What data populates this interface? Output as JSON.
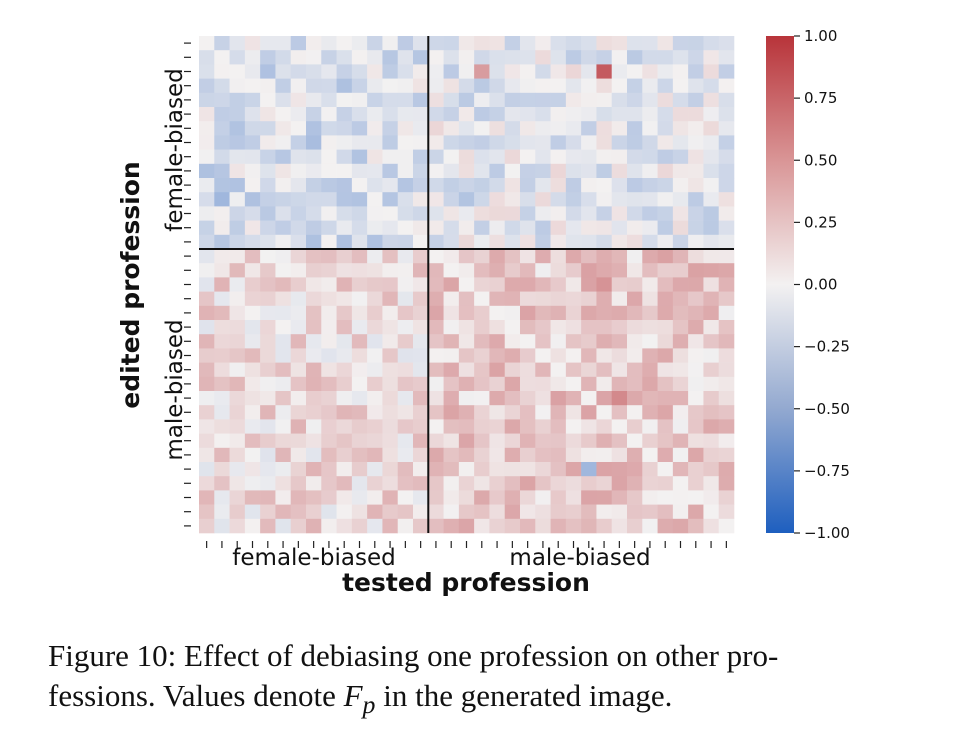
{
  "chart_data": {
    "type": "heatmap",
    "rows": 35,
    "cols": 35,
    "female_count": 15,
    "xlabel": "tested profession",
    "ylabel": "edited profession",
    "x_groups": [
      "female-biased",
      "male-biased"
    ],
    "y_groups": [
      "female-biased",
      "male-biased"
    ],
    "vmin": -1.0,
    "vmax": 1.0,
    "colormap": "vlag",
    "colorbar_ticks": [
      "1.00",
      "0.75",
      "0.50",
      "0.25",
      "0.00",
      "−0.25",
      "−0.50",
      "−0.75",
      "−1.00"
    ],
    "colorbar_values": [
      1.0,
      0.75,
      0.5,
      0.25,
      0.0,
      -0.25,
      -0.5,
      -0.75,
      -1.0
    ],
    "block_means": {
      "ff": -0.15,
      "fm": -0.08,
      "mf": 0.12,
      "mm": 0.2
    },
    "strong_cells": [
      [
        2,
        18,
        0.45
      ],
      [
        2,
        26,
        0.8
      ],
      [
        11,
        1,
        -0.45
      ],
      [
        7,
        7,
        -0.4
      ],
      [
        11,
        17,
        -0.35
      ],
      [
        17,
        26,
        0.5
      ],
      [
        25,
        27,
        0.55
      ],
      [
        30,
        25,
        -0.45
      ]
    ],
    "colors": {
      "neg": "#3a6fc4",
      "mid": "#f3f1f1",
      "pos": "#b8343a"
    }
  },
  "caption": {
    "line1_pre": "Figure 10: Effect of debiasing one profession on other pro-",
    "line2_pre": "fessions. Values denote ",
    "symbol_main": "F",
    "symbol_sub": "p",
    "line2_post": " in the generated image."
  }
}
